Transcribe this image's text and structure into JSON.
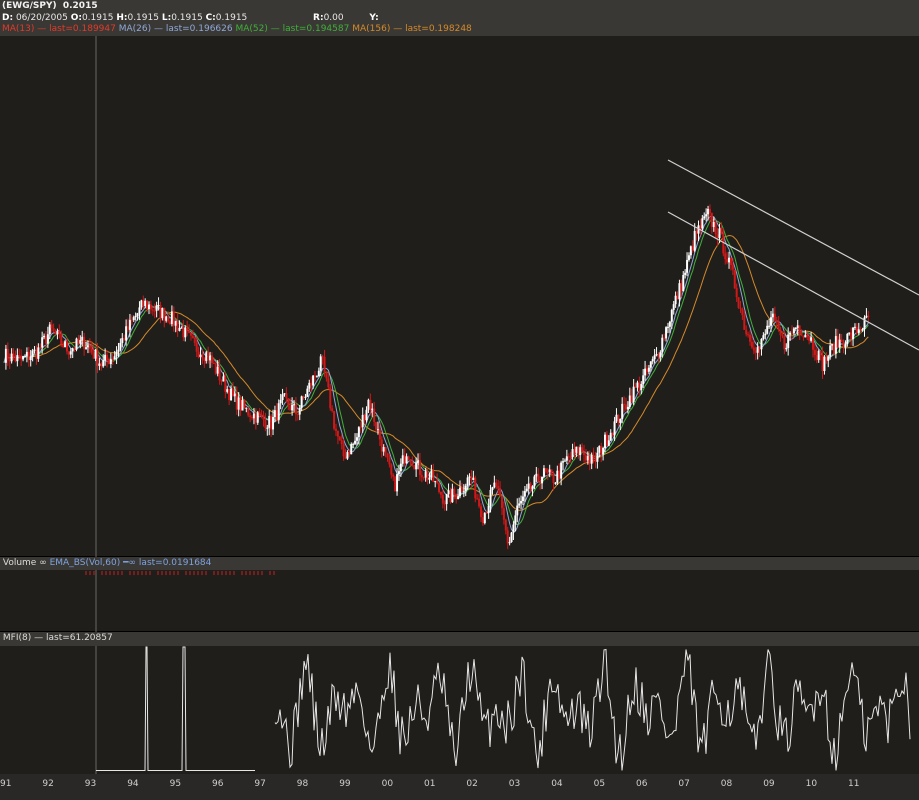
{
  "header": {
    "symbol": "(EWG/SPY)",
    "last": "0.2015",
    "date_label": "D:",
    "date": "06/20/2005",
    "o_label": "O:",
    "o": "0.1915",
    "h_label": "H:",
    "h": "0.1915",
    "l_label": "L:",
    "l": "0.1915",
    "c_label": "C:",
    "c": "0.1915",
    "r_label": "R:",
    "r": "0.00",
    "y_label": "Y:",
    "indicators": [
      {
        "name": "MA(13)",
        "last": "last=0.189947",
        "color": "#e33a2a"
      },
      {
        "name": "MA(26)",
        "last": "last=0.196626",
        "color": "#8fa8d8"
      },
      {
        "name": "MA(52)",
        "last": "last=0.194587",
        "color": "#3fb03a"
      },
      {
        "name": "MA(156)",
        "last": "last=0.198248",
        "color": "#d58a2a"
      }
    ]
  },
  "volume_panel": {
    "label": "Volume",
    "indicator": "EMA_BS(Vol,60)",
    "last": "last=0.0191684"
  },
  "mfi_panel": {
    "label": "MFI(8)",
    "last": "last=61.20857"
  },
  "colors": {
    "background": "#201e1b",
    "panel_bar": "#3a3834",
    "up_candle": "#ffffff",
    "down_candle": "#d11818",
    "trendline": "#cfcfcf"
  },
  "chart_data": {
    "type": "line",
    "title": "(EWG/SPY)",
    "x_ticks": [
      "91",
      "92",
      "93",
      "94",
      "95",
      "96",
      "97",
      "98",
      "99",
      "00",
      "01",
      "02",
      "03",
      "04",
      "05",
      "06",
      "07",
      "08",
      "09",
      "10",
      "11"
    ],
    "price_series": {
      "name": "EWG/SPY",
      "x": [
        1991.0,
        1991.4,
        1991.8,
        1992.1,
        1992.5,
        1992.9,
        1993.3,
        1993.6,
        1994.0,
        1994.3,
        1994.6,
        1994.9,
        1995.2,
        1995.5,
        1995.8,
        1996.1,
        1996.4,
        1996.7,
        1997.0,
        1997.3,
        1997.6,
        1997.9,
        1998.2,
        1998.5,
        1998.8,
        1999.0,
        1999.3,
        1999.6,
        1999.9,
        2000.2,
        2000.5,
        2000.8,
        2001.1,
        2001.4,
        2001.7,
        2002.0,
        2002.3,
        2002.6,
        2002.9,
        2003.1,
        2003.4,
        2003.7,
        2004.0,
        2004.3,
        2004.6,
        2004.9,
        2005.2,
        2005.5,
        2005.8,
        2006.1,
        2006.4,
        2006.7,
        2007.0,
        2007.3,
        2007.6,
        2007.9,
        2008.2,
        2008.5,
        2008.8,
        2009.1,
        2009.4,
        2009.7,
        2010.0,
        2010.3,
        2010.6,
        2010.9,
        2011.2,
        2011.4
      ],
      "y": [
        0.262,
        0.258,
        0.265,
        0.281,
        0.266,
        0.272,
        0.255,
        0.262,
        0.286,
        0.301,
        0.296,
        0.291,
        0.281,
        0.268,
        0.262,
        0.245,
        0.229,
        0.22,
        0.215,
        0.21,
        0.228,
        0.218,
        0.238,
        0.257,
        0.208,
        0.185,
        0.197,
        0.228,
        0.195,
        0.162,
        0.19,
        0.175,
        0.168,
        0.152,
        0.158,
        0.17,
        0.14,
        0.165,
        0.118,
        0.145,
        0.16,
        0.172,
        0.168,
        0.184,
        0.19,
        0.18,
        0.198,
        0.215,
        0.232,
        0.245,
        0.262,
        0.29,
        0.318,
        0.352,
        0.368,
        0.351,
        0.32,
        0.28,
        0.265,
        0.29,
        0.27,
        0.285,
        0.276,
        0.255,
        0.27,
        0.275,
        0.283,
        0.289
      ]
    },
    "moving_averages": [
      {
        "name": "MA(13)",
        "last": 0.189947
      },
      {
        "name": "MA(26)",
        "last": 0.196626
      },
      {
        "name": "MA(52)",
        "last": 0.194587
      },
      {
        "name": "MA(156)",
        "last": 0.198248
      }
    ],
    "mfi": {
      "name": "MFI(8)",
      "last": 61.20857,
      "ylim": [
        0,
        100
      ]
    },
    "volume": {
      "name": "EMA_BS(Vol,60)",
      "last": 0.0191684
    }
  }
}
